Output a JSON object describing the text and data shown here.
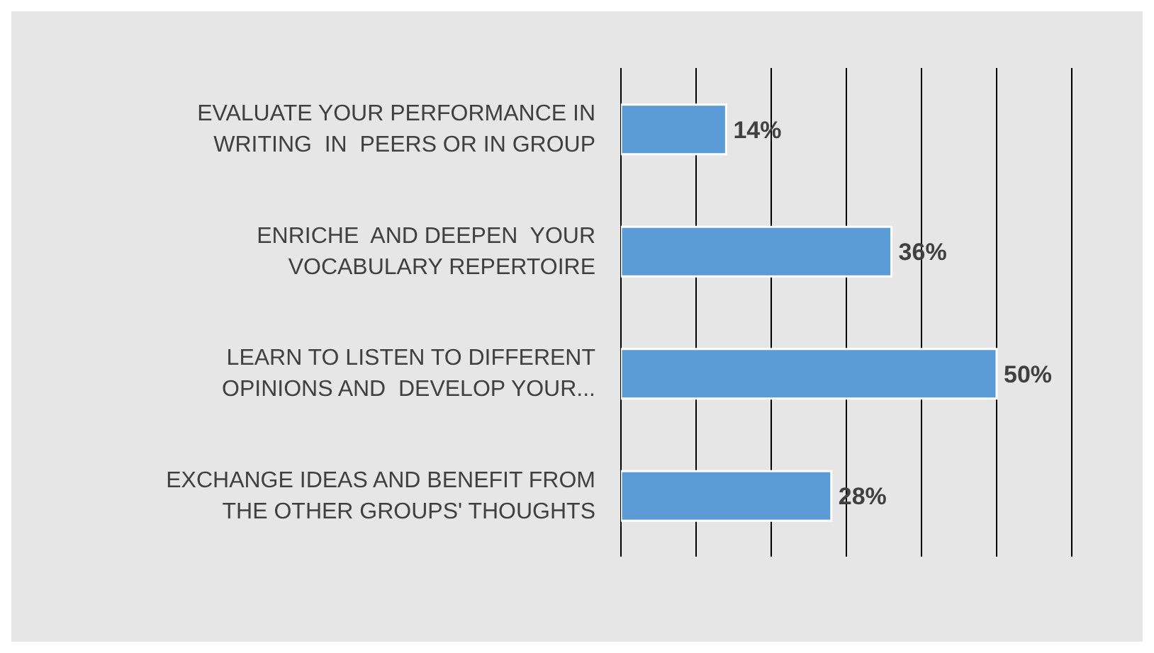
{
  "chart_data": {
    "type": "bar",
    "orientation": "horizontal",
    "categories": [
      "EVALUATE YOUR PERFORMANCE IN WRITING  IN  PEERS OR IN GROUP",
      "ENRICHE  AND DEEPEN  YOUR VOCABULARY REPERTOIRE",
      "LEARN TO LISTEN TO DIFFERENT OPINIONS AND  DEVELOP YOUR...",
      "EXCHANGE IDEAS AND BENEFIT FROM THE OTHER GROUPS' THOUGHTS"
    ],
    "values": [
      14,
      36,
      50,
      28
    ],
    "value_labels": [
      "14%",
      "36%",
      "50%",
      "28%"
    ],
    "color": "#5b9bd5",
    "grid": "x",
    "tick_labels": "y",
    "legend": false
  }
}
